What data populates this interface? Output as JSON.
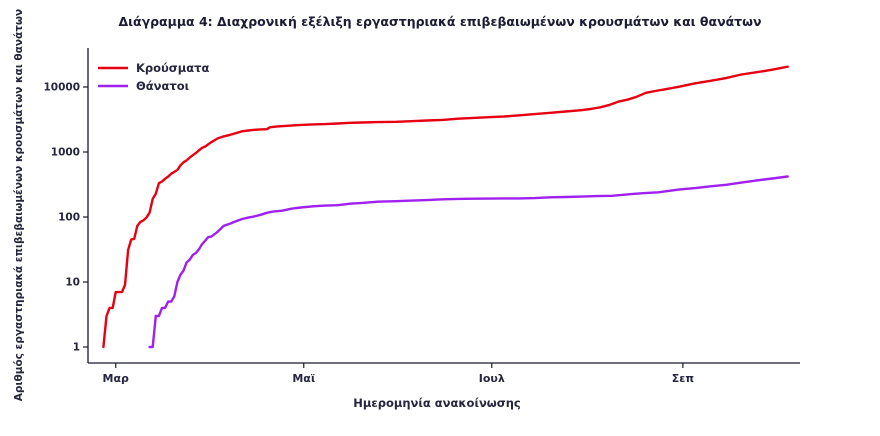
{
  "chart_data": {
    "type": "line",
    "title": "Διάγραμμα 4: Διαχρονική εξέλιξη εργαστηριακά επιβεβαιωμένων κρουσμάτων και θανάτων",
    "xlabel": "Ημερομηνία ανακοίνωσης",
    "ylabel": "Αριθμός εργαστηριακά επιβεβαιωμένων κρουσμάτων και θανάτων",
    "y_scale": "log10",
    "y_ticks": [
      1,
      10,
      100,
      1000,
      10000
    ],
    "ylim": [
      1,
      30000
    ],
    "x_unit": "days since 2020-03-01",
    "x_domain_days": [
      -9,
      222
    ],
    "x_ticks": [
      {
        "label": "Μαρ",
        "day": 0
      },
      {
        "label": "Μαϊ",
        "day": 61
      },
      {
        "label": "Ιουλ",
        "day": 122
      },
      {
        "label": "Σεπ",
        "day": 184
      }
    ],
    "grid": false,
    "legend_position": "top-left",
    "text_color": "#26263e",
    "axis_color": "#1a1a2e",
    "series": [
      {
        "name": "Κρούσματα",
        "color": "#e60012",
        "points": [
          [
            -4,
            1
          ],
          [
            -3,
            3
          ],
          [
            -2,
            4
          ],
          [
            -1,
            4
          ],
          [
            0,
            7
          ],
          [
            2,
            7
          ],
          [
            3,
            9
          ],
          [
            4,
            31
          ],
          [
            5,
            45
          ],
          [
            6,
            46
          ],
          [
            7,
            73
          ],
          [
            8,
            84
          ],
          [
            9,
            89
          ],
          [
            10,
            99
          ],
          [
            11,
            117
          ],
          [
            12,
            190
          ],
          [
            13,
            228
          ],
          [
            14,
            331
          ],
          [
            15,
            352
          ],
          [
            16,
            387
          ],
          [
            17,
            418
          ],
          [
            18,
            464
          ],
          [
            19,
            495
          ],
          [
            20,
            530
          ],
          [
            21,
            624
          ],
          [
            22,
            695
          ],
          [
            23,
            743
          ],
          [
            24,
            821
          ],
          [
            25,
            892
          ],
          [
            26,
            966
          ],
          [
            27,
            1061
          ],
          [
            28,
            1156
          ],
          [
            29,
            1212
          ],
          [
            30,
            1314
          ],
          [
            31,
            1415
          ],
          [
            33,
            1613
          ],
          [
            35,
            1735
          ],
          [
            37,
            1832
          ],
          [
            39,
            1955
          ],
          [
            41,
            2081
          ],
          [
            43,
            2145
          ],
          [
            45,
            2192
          ],
          [
            47,
            2224
          ],
          [
            49,
            2245
          ],
          [
            50,
            2401
          ],
          [
            52,
            2463
          ],
          [
            55,
            2517
          ],
          [
            58,
            2576
          ],
          [
            60,
            2612
          ],
          [
            64,
            2663
          ],
          [
            68,
            2691
          ],
          [
            72,
            2744
          ],
          [
            76,
            2810
          ],
          [
            80,
            2840
          ],
          [
            85,
            2882
          ],
          [
            91,
            2917
          ],
          [
            96,
            2980
          ],
          [
            101,
            3049
          ],
          [
            106,
            3121
          ],
          [
            111,
            3256
          ],
          [
            116,
            3343
          ],
          [
            121,
            3432
          ],
          [
            126,
            3511
          ],
          [
            131,
            3672
          ],
          [
            136,
            3826
          ],
          [
            141,
            4007
          ],
          [
            146,
            4193
          ],
          [
            151,
            4401
          ],
          [
            154,
            4587
          ],
          [
            157,
            4855
          ],
          [
            160,
            5270
          ],
          [
            163,
            5942
          ],
          [
            166,
            6381
          ],
          [
            169,
            7075
          ],
          [
            172,
            8138
          ],
          [
            175,
            8664
          ],
          [
            178,
            9180
          ],
          [
            183,
            10134
          ],
          [
            188,
            11386
          ],
          [
            193,
            12452
          ],
          [
            198,
            13730
          ],
          [
            203,
            15595
          ],
          [
            208,
            16913
          ],
          [
            213,
            18475
          ],
          [
            218,
            20541
          ]
        ]
      },
      {
        "name": "Θάνατοι",
        "color": "#a020f0",
        "points": [
          [
            11,
            1
          ],
          [
            12,
            1
          ],
          [
            13,
            3
          ],
          [
            14,
            3
          ],
          [
            15,
            4
          ],
          [
            16,
            4
          ],
          [
            17,
            5
          ],
          [
            18,
            5
          ],
          [
            19,
            6
          ],
          [
            20,
            10
          ],
          [
            21,
            13
          ],
          [
            22,
            15
          ],
          [
            23,
            20
          ],
          [
            24,
            22
          ],
          [
            25,
            26
          ],
          [
            26,
            28
          ],
          [
            27,
            32
          ],
          [
            28,
            38
          ],
          [
            29,
            43
          ],
          [
            30,
            49
          ],
          [
            31,
            50
          ],
          [
            33,
            59
          ],
          [
            35,
            73
          ],
          [
            37,
            79
          ],
          [
            39,
            86
          ],
          [
            41,
            93
          ],
          [
            43,
            98
          ],
          [
            45,
            102
          ],
          [
            47,
            108
          ],
          [
            49,
            116
          ],
          [
            51,
            121
          ],
          [
            54,
            125
          ],
          [
            57,
            134
          ],
          [
            60,
            140
          ],
          [
            64,
            146
          ],
          [
            68,
            150
          ],
          [
            72,
            152
          ],
          [
            76,
            160
          ],
          [
            80,
            165
          ],
          [
            85,
            172
          ],
          [
            91,
            175
          ],
          [
            96,
            179
          ],
          [
            101,
            182
          ],
          [
            106,
            187
          ],
          [
            111,
            190
          ],
          [
            116,
            191
          ],
          [
            121,
            192
          ],
          [
            126,
            193
          ],
          [
            131,
            193
          ],
          [
            136,
            195
          ],
          [
            141,
            201
          ],
          [
            146,
            203
          ],
          [
            151,
            206
          ],
          [
            156,
            210
          ],
          [
            161,
            212
          ],
          [
            166,
            223
          ],
          [
            171,
            232
          ],
          [
            176,
            240
          ],
          [
            183,
            266
          ],
          [
            188,
            278
          ],
          [
            193,
            297
          ],
          [
            198,
            313
          ],
          [
            203,
            338
          ],
          [
            208,
            366
          ],
          [
            213,
            391
          ],
          [
            218,
            420
          ]
        ]
      }
    ]
  }
}
